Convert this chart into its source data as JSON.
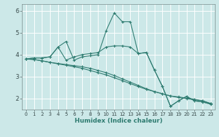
{
  "xlabel": "Humidex (Indice chaleur)",
  "background_color": "#cce8e8",
  "grid_color": "#ffffff",
  "line_color": "#2e7b70",
  "xlim": [
    -0.5,
    23.5
  ],
  "ylim": [
    1.5,
    6.3
  ],
  "xticks": [
    0,
    1,
    2,
    3,
    4,
    5,
    6,
    7,
    8,
    9,
    10,
    11,
    12,
    13,
    14,
    15,
    16,
    17,
    18,
    19,
    20,
    21,
    22,
    23
  ],
  "yticks": [
    2,
    3,
    4,
    5,
    6
  ],
  "series": [
    [
      3.8,
      3.85,
      3.85,
      3.9,
      4.35,
      4.6,
      3.75,
      3.9,
      3.95,
      4.0,
      5.1,
      5.9,
      5.5,
      5.5,
      4.05,
      4.1,
      3.3,
      2.55,
      1.65,
      1.9,
      2.1,
      1.9,
      1.85,
      1.75
    ],
    [
      3.8,
      3.85,
      3.85,
      3.9,
      4.35,
      3.75,
      3.9,
      4.0,
      4.05,
      4.1,
      4.35,
      4.4,
      4.4,
      4.35,
      4.05,
      4.1,
      3.3,
      2.55,
      1.65,
      1.9,
      2.1,
      1.9,
      1.85,
      1.75
    ],
    [
      3.8,
      3.78,
      3.72,
      3.65,
      3.58,
      3.52,
      3.45,
      3.38,
      3.28,
      3.18,
      3.08,
      2.95,
      2.82,
      2.68,
      2.55,
      2.42,
      2.32,
      2.22,
      2.12,
      2.08,
      2.02,
      1.97,
      1.9,
      1.78
    ],
    [
      3.8,
      3.78,
      3.72,
      3.65,
      3.6,
      3.55,
      3.5,
      3.45,
      3.38,
      3.28,
      3.18,
      3.05,
      2.9,
      2.75,
      2.6,
      2.45,
      2.32,
      2.22,
      2.12,
      2.05,
      2.0,
      1.95,
      1.9,
      1.78
    ]
  ]
}
